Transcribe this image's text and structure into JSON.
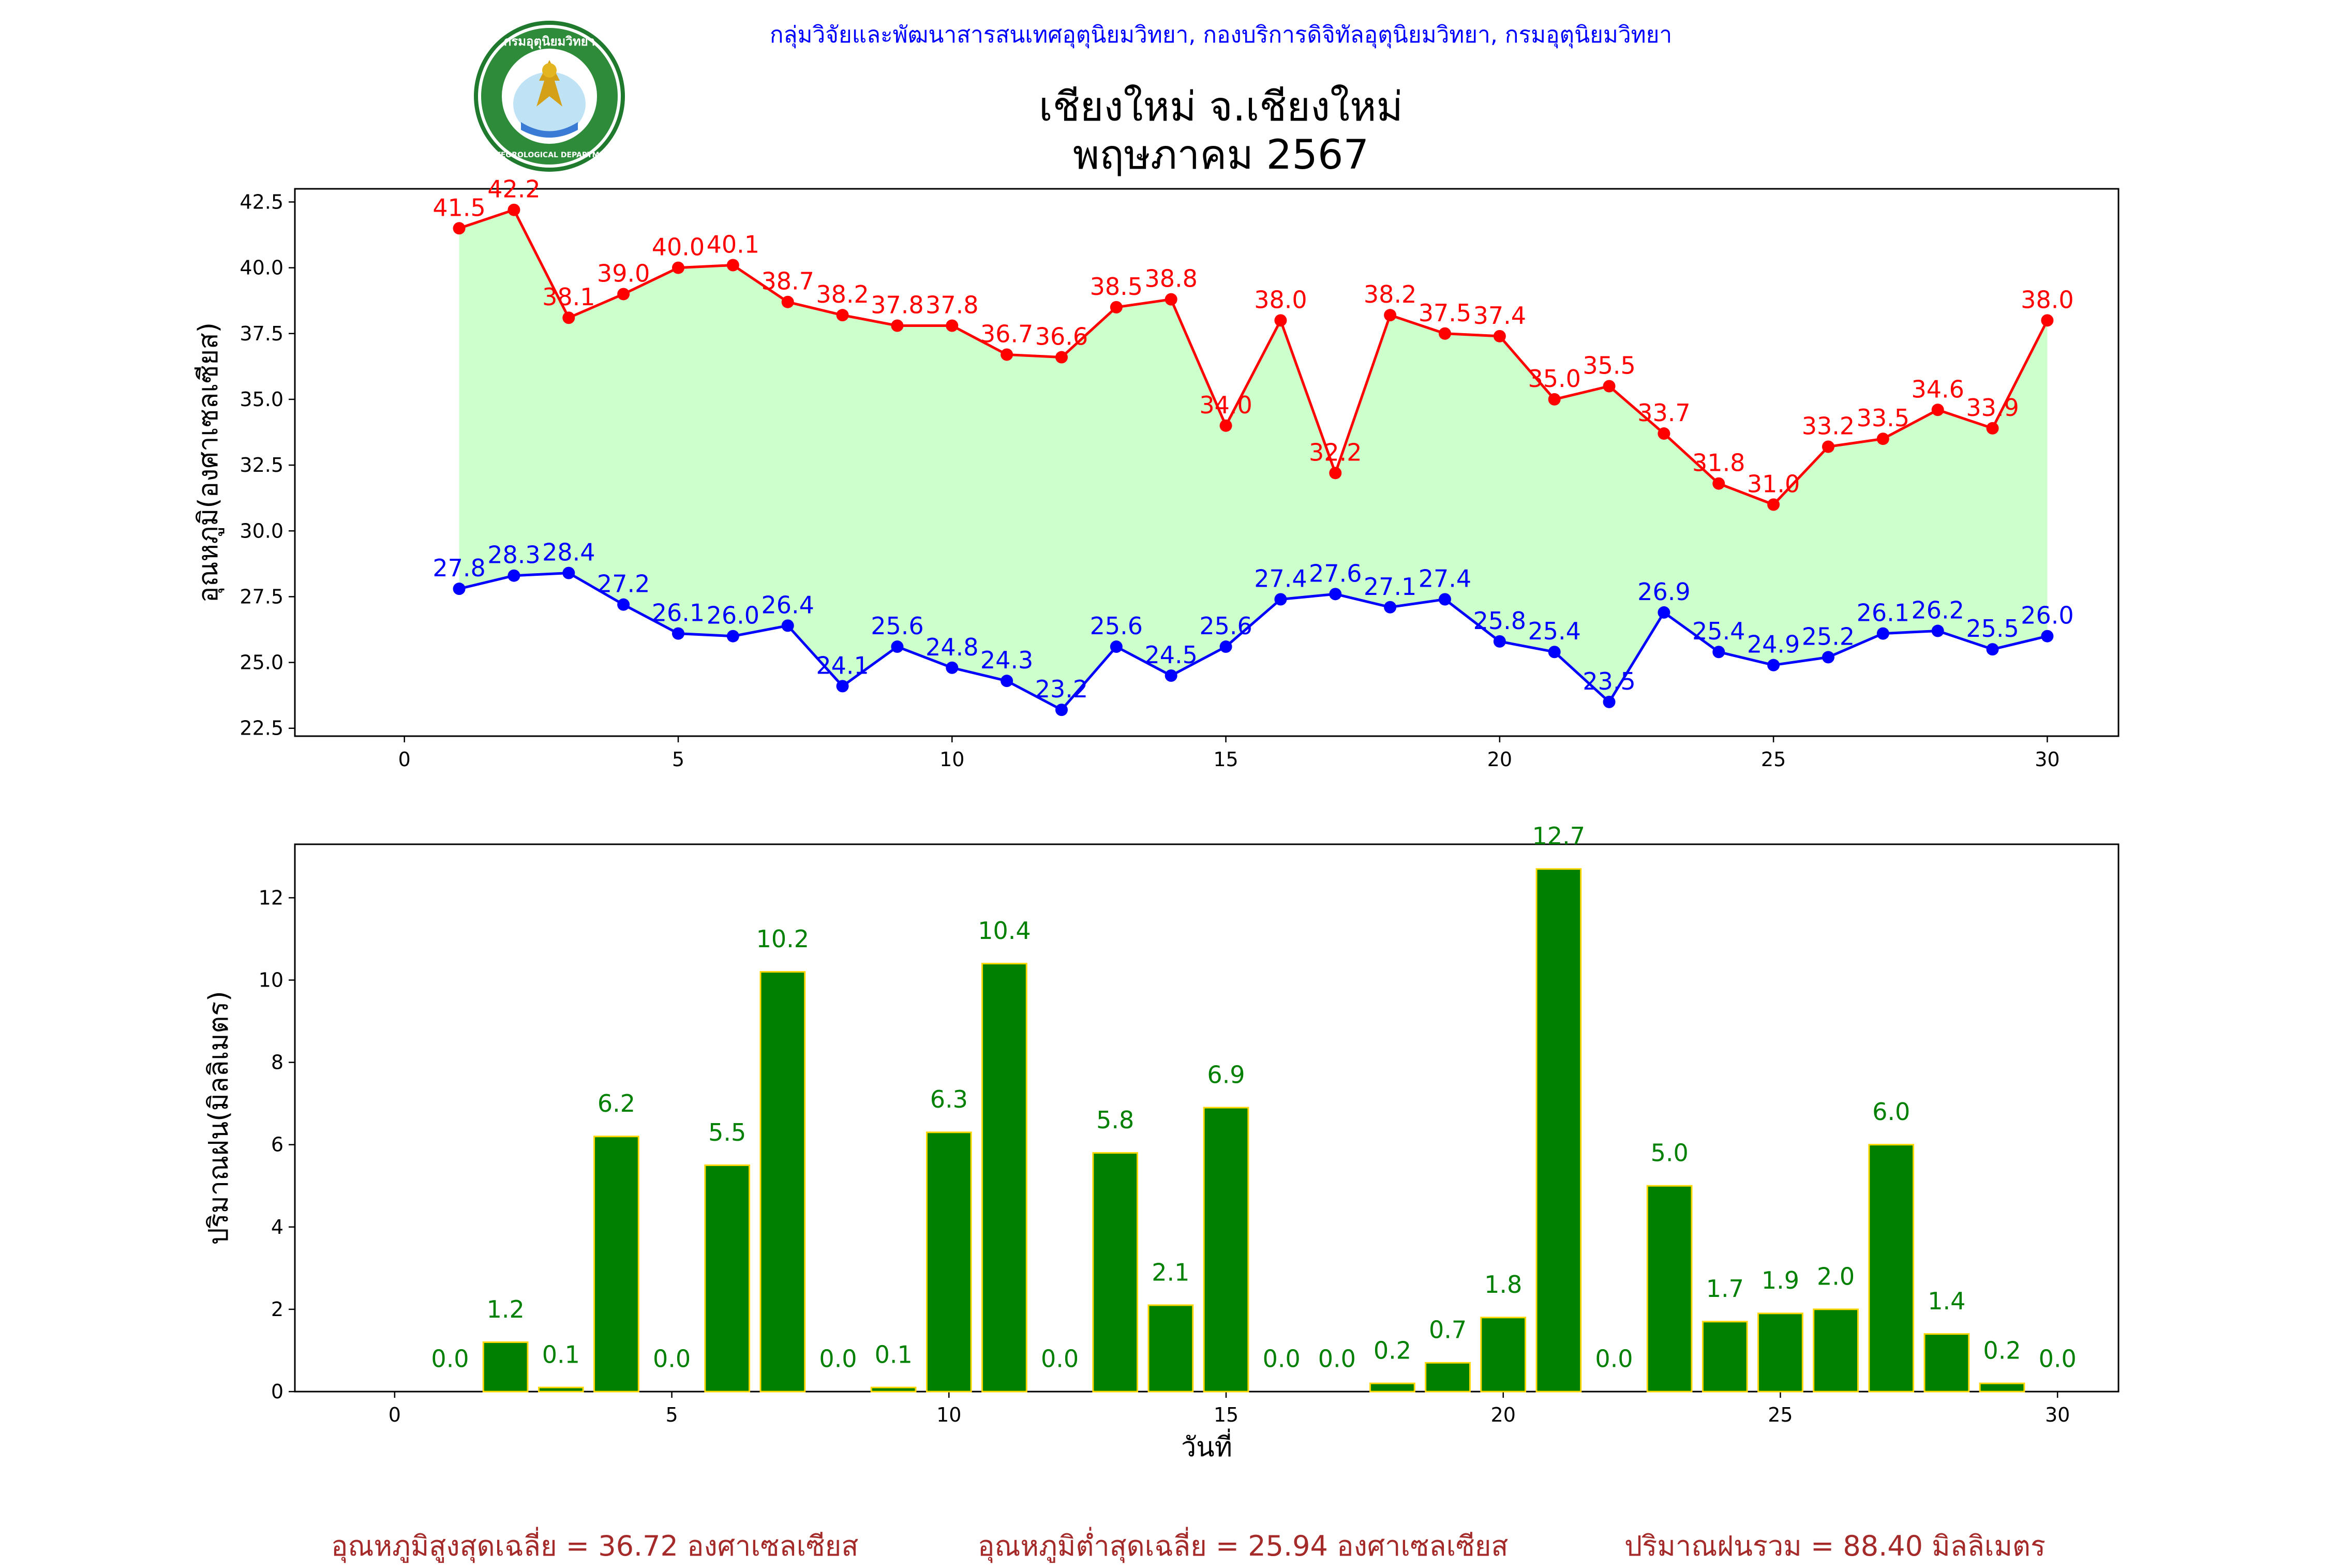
{
  "header": {
    "agency": "กลุ่มวิจัยและพัฒนาสารสนเทศอุตุนิยมวิทยา, กองบริการดิจิทัลอุตุนิยมวิทยา, กรมอุตุนิยมวิทยา",
    "title_line1": "เชียงใหม่ จ.เชียงใหม่",
    "title_line2": "พฤษภาคม 2567",
    "logo_text_top": "กรมอุตุนิยมวิทยา",
    "logo_text_bottom": "METEOROLOGICAL DEPARTMENT"
  },
  "footer": {
    "avg_max": "อุณหภูมิสูงสุดเฉลี่ย = 36.72 องศาเซลเซียส",
    "avg_min": "อุณหภูมิต่ำสุดเฉลี่ย = 25.94 องศาเซลเซียส",
    "total_rain": "ปริมาณฝนรวม = 88.40 มิลลิเมตร"
  },
  "colors": {
    "max_line": "#ff0000",
    "min_line": "#0000ff",
    "fill_between": "#ccffcc",
    "rain_bar": "#008000",
    "rain_bar_edge": "#ffd700",
    "footer_text": "#a52a2a"
  },
  "chart_data": [
    {
      "type": "line",
      "ylabel": "อุณหภูมิ(องศาเซลเซียส)",
      "xlabel": "",
      "xlim": [
        -2,
        31.3
      ],
      "ylim": [
        22.2,
        43.0
      ],
      "xticks": [
        0,
        5,
        10,
        15,
        20,
        25,
        30
      ],
      "yticks": [
        "22.5",
        "25.0",
        "27.5",
        "30.0",
        "32.5",
        "35.0",
        "37.5",
        "40.0",
        "42.5"
      ],
      "x": [
        1,
        2,
        3,
        4,
        5,
        6,
        7,
        8,
        9,
        10,
        11,
        12,
        13,
        14,
        15,
        16,
        17,
        18,
        19,
        20,
        21,
        22,
        23,
        24,
        25,
        26,
        27,
        28,
        29,
        30
      ],
      "series": [
        {
          "key": "max",
          "values": [
            41.5,
            42.2,
            38.1,
            39.0,
            40.0,
            40.1,
            38.7,
            38.2,
            37.8,
            37.8,
            36.7,
            36.6,
            38.5,
            38.8,
            34.0,
            38.0,
            32.2,
            38.2,
            37.5,
            37.4,
            35.0,
            35.5,
            33.7,
            31.8,
            31.0,
            33.2,
            33.5,
            34.6,
            33.9,
            38.0
          ]
        },
        {
          "key": "min",
          "values": [
            27.8,
            28.3,
            28.4,
            27.2,
            26.1,
            26.0,
            26.4,
            24.1,
            25.6,
            24.8,
            24.3,
            23.2,
            25.6,
            24.5,
            25.6,
            27.4,
            27.6,
            27.1,
            27.4,
            25.8,
            25.4,
            23.5,
            26.9,
            25.4,
            24.9,
            25.2,
            26.1,
            26.2,
            25.5,
            26.0
          ]
        }
      ],
      "fill_between": true
    },
    {
      "type": "bar",
      "ylabel": "ปริมาณฝน(มิลลิเมตร)",
      "xlabel": "วันที่",
      "xlim": [
        -1.8,
        31.1
      ],
      "ylim": [
        0,
        13.3
      ],
      "xticks": [
        0,
        5,
        10,
        15,
        20,
        25,
        30
      ],
      "yticks": [
        "0",
        "2",
        "4",
        "6",
        "8",
        "10",
        "12"
      ],
      "categories": [
        1,
        2,
        3,
        4,
        5,
        6,
        7,
        8,
        9,
        10,
        11,
        12,
        13,
        14,
        15,
        16,
        17,
        18,
        19,
        20,
        21,
        22,
        23,
        24,
        25,
        26,
        27,
        28,
        29,
        30
      ],
      "values": [
        0.0,
        1.2,
        0.1,
        6.2,
        0.0,
        5.5,
        10.2,
        0.0,
        0.1,
        6.3,
        10.4,
        0.0,
        5.8,
        2.1,
        6.9,
        0.0,
        0.0,
        0.2,
        0.7,
        1.8,
        12.7,
        0.0,
        5.0,
        1.7,
        1.9,
        2.0,
        6.0,
        1.4,
        0.2,
        0.0
      ]
    }
  ]
}
